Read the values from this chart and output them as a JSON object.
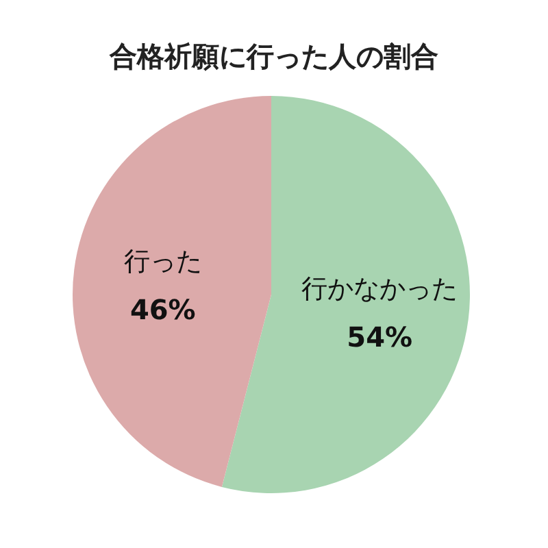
{
  "chart_data": {
    "type": "pie",
    "title": "合格祈願に行った人の割合",
    "categories": [
      "行かなかった",
      "行った"
    ],
    "values": [
      54,
      46
    ],
    "colors": [
      "#a8d4b1",
      "#dcaaaa"
    ],
    "value_labels": [
      "54%",
      "46%"
    ]
  }
}
